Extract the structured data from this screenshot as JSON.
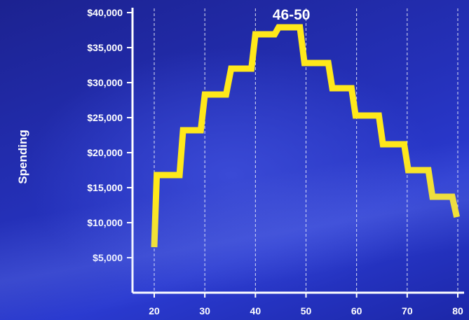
{
  "chart_data": {
    "type": "line",
    "ylabel": "Spending",
    "ylim": [
      0,
      40000
    ],
    "xlim": [
      18,
      80
    ],
    "yticks": [
      {
        "value": 5000,
        "label": "$5,000"
      },
      {
        "value": 10000,
        "label": "$10,000"
      },
      {
        "value": 15000,
        "label": "$15,000"
      },
      {
        "value": 20000,
        "label": "$20,000"
      },
      {
        "value": 25000,
        "label": "$25,000"
      },
      {
        "value": 30000,
        "label": "$30,000"
      },
      {
        "value": 35000,
        "label": "$35,000"
      },
      {
        "value": 40000,
        "label": "$40,000"
      }
    ],
    "xticks": [
      {
        "value": 20,
        "label": "20"
      },
      {
        "value": 30,
        "label": "30"
      },
      {
        "value": 40,
        "label": "40"
      },
      {
        "value": 50,
        "label": "50"
      },
      {
        "value": 60,
        "label": "60"
      },
      {
        "value": 70,
        "label": "70"
      },
      {
        "value": 80,
        "label": "80"
      }
    ],
    "gridlines_x": [
      20,
      30,
      40,
      50,
      60,
      70,
      80
    ],
    "series": [
      {
        "color": "#ffe81a",
        "points": [
          [
            20,
            6500
          ],
          [
            20.5,
            16800
          ],
          [
            25,
            16800
          ],
          [
            25.7,
            23200
          ],
          [
            29.2,
            23200
          ],
          [
            30,
            28300
          ],
          [
            34.2,
            28300
          ],
          [
            35.2,
            32000
          ],
          [
            39.2,
            32000
          ],
          [
            40,
            36900
          ],
          [
            43.8,
            36900
          ],
          [
            44.6,
            37900
          ],
          [
            48.8,
            37900
          ],
          [
            49.7,
            32800
          ],
          [
            54.4,
            32800
          ],
          [
            55.2,
            29200
          ],
          [
            59,
            29200
          ],
          [
            59.8,
            25300
          ],
          [
            64.4,
            25300
          ],
          [
            65.2,
            21200
          ],
          [
            69.4,
            21200
          ],
          [
            70.2,
            17500
          ],
          [
            74.2,
            17500
          ],
          [
            75,
            13700
          ],
          [
            78.9,
            13700
          ],
          [
            79.8,
            10800
          ]
        ]
      }
    ],
    "annotations": [
      {
        "text": "46-50",
        "x": 46,
        "y": 40000
      }
    ],
    "grid": "vertical-dashed"
  }
}
